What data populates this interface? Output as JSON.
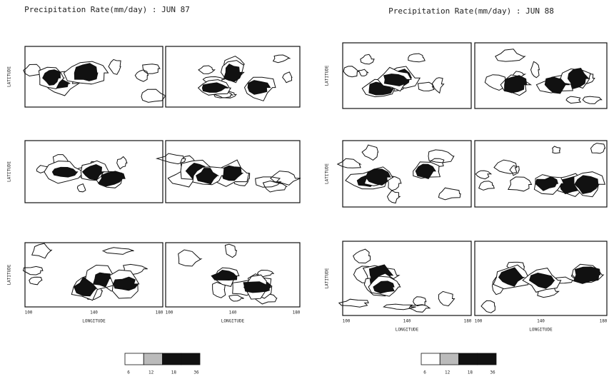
{
  "figures": [
    {
      "title": "Precipitation Rate(mm/day) : JUN 87",
      "y_axis_label": "LATITUDE",
      "x_axis_label": "LONGITUDE",
      "x_ticks": [
        "100",
        "140",
        "180"
      ],
      "colorbar_ticks": [
        "6",
        "12",
        "18",
        "36"
      ]
    },
    {
      "title": "Precipitation Rate(mm/day) : JUN 88",
      "y_axis_label": "LATITUDE",
      "x_axis_label": "LONGITUDE",
      "x_ticks": [
        "100",
        "140",
        "180"
      ],
      "colorbar_ticks": [
        "6",
        "12",
        "18",
        "36"
      ]
    }
  ]
}
